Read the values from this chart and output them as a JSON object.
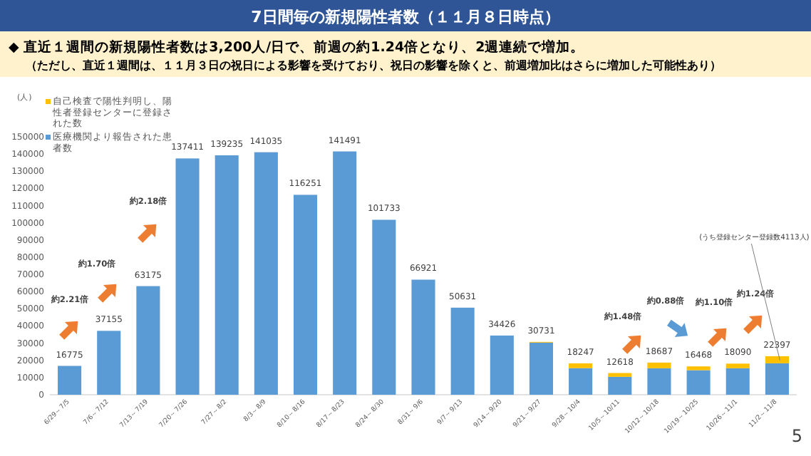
{
  "chart_data": {
    "type": "bar",
    "stacked": true,
    "title": "7日間毎の新規陽性者数（１１月８日時点）",
    "subtitle": "◆  直近１週間の新規陽性者数は3,200人/日で、前週の約1.24倍となり、2週連続で増加。",
    "ylabel": "(人)",
    "categories": [
      "6/29～7/5",
      "7/6～7/12",
      "7/13～7/19",
      "7/20～7/26",
      "7/27～8/2",
      "8/3～8/9",
      "8/10～8/16",
      "8/17～8/23",
      "8/24～8/30",
      "8/31～9/6",
      "9/7～9/13",
      "9/14～9/20",
      "9/21～9/27",
      "9/28～10/4",
      "10/5～10/11",
      "10/12～10/18",
      "10/19～10/25",
      "10/26～11/1",
      "11/2～11/8"
    ],
    "series": [
      {
        "name": "医療機関より報告された患者数",
        "color": "#5b9bd5",
        "values": [
          16775,
          37155,
          63175,
          137411,
          139235,
          141035,
          116251,
          141491,
          101733,
          66921,
          50631,
          34426,
          30331,
          15447,
          10418,
          15387,
          14268,
          15390,
          18284
        ]
      },
      {
        "name": "自己検査で陽性判明し、陽性者登録センターに登録された数",
        "color": "#ffc000",
        "values": [
          null,
          null,
          null,
          null,
          null,
          null,
          null,
          null,
          null,
          null,
          null,
          null,
          400,
          2800,
          2200,
          3300,
          2200,
          2700,
          4113
        ]
      }
    ],
    "totals": [
      "16775",
      "37155",
      "63175",
      "137411",
      "139235",
      "141035",
      "116251",
      "141491",
      "101733",
      "66921",
      "50631",
      "34426",
      "30731",
      "18247",
      "12618",
      "18687",
      "16468",
      "18090",
      "22397"
    ],
    "ylim": [
      0,
      150000
    ],
    "yticks": [
      0,
      10000,
      20000,
      30000,
      40000,
      50000,
      60000,
      70000,
      80000,
      90000,
      100000,
      110000,
      120000,
      130000,
      140000,
      150000
    ],
    "grid": false,
    "legend": "top left",
    "annotations": [
      "（ただし、直近１週間は、１１月３日の祝日による影響を受けており、祝日の影響を除くと、前週増加比はさらに増加した可能性あり）",
      "約2.21倍",
      "約1.70倍",
      "約2.18倍",
      "約1.48倍",
      "約0.88倍",
      "約1.10倍",
      "約1.24倍",
      {
        "text": "(うち登録センター登録数4113人)",
        "x": "11/2～11/8",
        "y": 20000
      },
      "5"
    ]
  }
}
